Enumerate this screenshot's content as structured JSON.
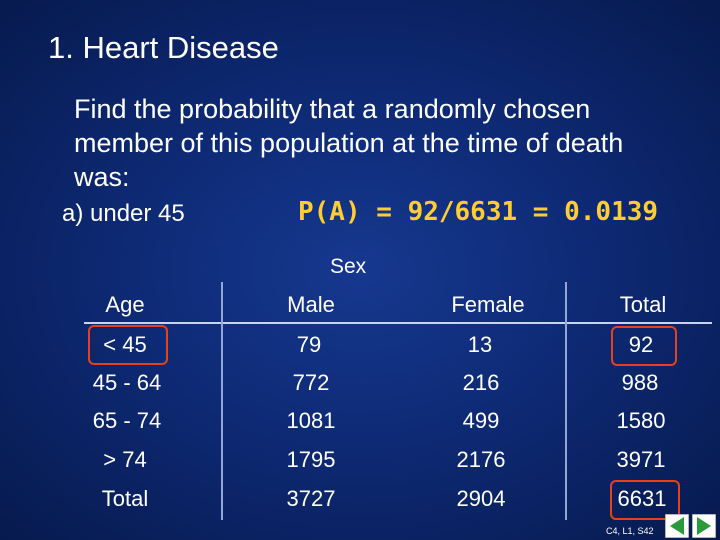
{
  "slide": {
    "title": "1.  Heart Disease",
    "question": "Find the probability that a randomly chosen member of this population at the time of death was:",
    "part_a_label": "a)  under 45",
    "part_a_answer": "P(A) = 92/6631 = 0.0139",
    "sex_label": "Sex"
  },
  "table": {
    "headers": [
      "Age",
      "Male",
      "Female",
      "Total"
    ],
    "rows": [
      [
        "< 45",
        "79",
        "13",
        "92"
      ],
      [
        "45 - 64",
        "772",
        "216",
        "988"
      ],
      [
        "65 - 74",
        "1081",
        "499",
        "1580"
      ],
      [
        "> 74",
        "1795",
        "2176",
        "3971"
      ],
      [
        "Total",
        "3727",
        "2904",
        "6631"
      ]
    ]
  },
  "footer": {
    "slide_ref": "C4, L1, S42",
    "prev_icon": "arrow-left-icon",
    "next_icon": "arrow-right-icon",
    "accent_color": "#2a9a3a"
  }
}
